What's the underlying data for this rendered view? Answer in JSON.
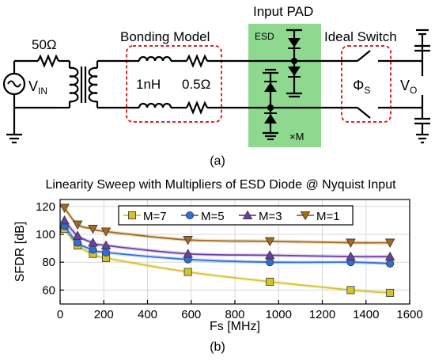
{
  "circuit": {
    "resistor_label": "50Ω",
    "bonding_title": "Bonding Model",
    "inductor_label": "1nH",
    "bond_resistor_label": "0.5Ω",
    "pad_title": "Input PAD",
    "esd_label": "ESD",
    "multiplier_label": "×M",
    "switch_title": "Ideal Switch",
    "source_label": "V",
    "source_sub": "IN",
    "phase_label": "Φ",
    "phase_sub": "S",
    "output_label": "V",
    "output_sub": "O",
    "caption": "(a)",
    "colors": {
      "pad_fill": "#8fd88f",
      "box_stroke": "#d9262c"
    }
  },
  "chart_caption": "(b)",
  "chart_data": {
    "type": "line",
    "title": "Linearity Sweep with Multipliers of ESD Diode @ Nyquist Input",
    "xlabel": "Fs [MHz]",
    "ylabel": "SFDR [dB]",
    "xlim": [
      0,
      1600
    ],
    "ylim": [
      50,
      125
    ],
    "xticks": [
      0,
      200,
      400,
      600,
      800,
      1000,
      1200,
      1400,
      1600
    ],
    "yticks": [
      60,
      80,
      100,
      120
    ],
    "grid": true,
    "legend_position": "top",
    "series": [
      {
        "name": "M=7",
        "color": "#d4c32c",
        "marker": "square",
        "x": [
          20,
          80,
          150,
          210,
          585,
          960,
          1330,
          1510
        ],
        "y": [
          104,
          92,
          86,
          83,
          73,
          66,
          60,
          58
        ]
      },
      {
        "name": "M=5",
        "color": "#2f6fd6",
        "marker": "circle",
        "x": [
          20,
          80,
          150,
          210,
          585,
          960,
          1330,
          1510
        ],
        "y": [
          106,
          94,
          89,
          87,
          82,
          80,
          80,
          79
        ]
      },
      {
        "name": "M=3",
        "color": "#6a3fa0",
        "marker": "triangle-up",
        "x": [
          20,
          80,
          150,
          210,
          585,
          960,
          1330,
          1510
        ],
        "y": [
          110,
          99,
          94,
          92,
          86,
          85,
          84,
          84
        ]
      },
      {
        "name": "M=1",
        "color": "#a66a1a",
        "marker": "triangle-down",
        "x": [
          20,
          80,
          150,
          210,
          585,
          960,
          1330,
          1510
        ],
        "y": [
          119,
          107,
          104,
          102,
          96,
          95,
          94,
          94
        ]
      }
    ]
  }
}
